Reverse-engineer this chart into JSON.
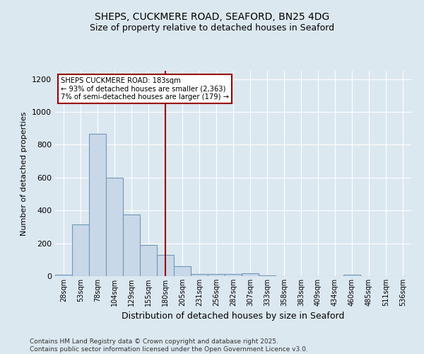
{
  "title1": "SHEPS, CUCKMERE ROAD, SEAFORD, BN25 4DG",
  "title2": "Size of property relative to detached houses in Seaford",
  "xlabel": "Distribution of detached houses by size in Seaford",
  "ylabel": "Number of detached properties",
  "categories": [
    "28sqm",
    "53sqm",
    "78sqm",
    "104sqm",
    "129sqm",
    "155sqm",
    "180sqm",
    "205sqm",
    "231sqm",
    "256sqm",
    "282sqm",
    "307sqm",
    "333sqm",
    "358sqm",
    "383sqm",
    "409sqm",
    "434sqm",
    "460sqm",
    "485sqm",
    "511sqm",
    "536sqm"
  ],
  "values": [
    10,
    315,
    865,
    600,
    375,
    190,
    130,
    60,
    15,
    12,
    15,
    17,
    3,
    0,
    0,
    0,
    0,
    8,
    0,
    0,
    0
  ],
  "bar_color": "#c8d8e8",
  "bar_edge_color": "#7098b8",
  "vline_x": 6,
  "vline_color": "#990000",
  "annotation_line1": "SHEPS CUCKMERE ROAD: 183sqm",
  "annotation_line2": "← 93% of detached houses are smaller (2,363)",
  "annotation_line3": "7% of semi-detached houses are larger (179) →",
  "annotation_box_color": "#ffffff",
  "annotation_border_color": "#990000",
  "ylim": [
    0,
    1250
  ],
  "yticks": [
    0,
    200,
    400,
    600,
    800,
    1000,
    1200
  ],
  "background_color": "#dce8f0",
  "footer_line1": "Contains HM Land Registry data © Crown copyright and database right 2025.",
  "footer_line2": "Contains public sector information licensed under the Open Government Licence v3.0."
}
